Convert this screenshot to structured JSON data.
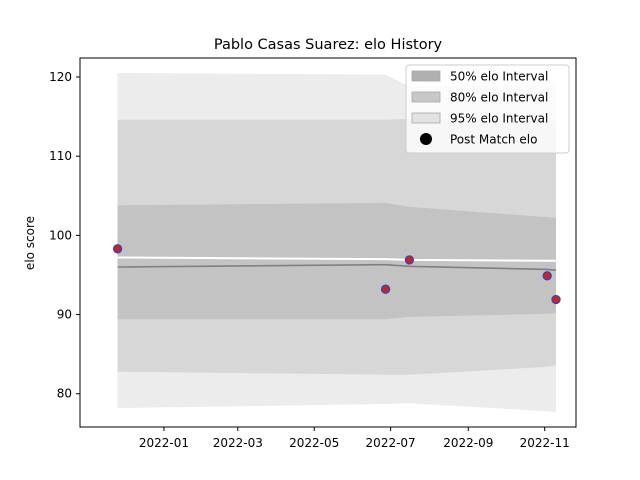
{
  "chart_data": {
    "type": "line",
    "title": "Pablo Casas Suarez: elo History",
    "xlabel": "",
    "ylabel": "elo score",
    "xlim": [
      "2021-10-26",
      "2022-11-26"
    ],
    "ylim": [
      75.8,
      122.4
    ],
    "x_ticks": [
      "2022-01",
      "2022-03",
      "2022-05",
      "2022-07",
      "2022-09",
      "2022-11"
    ],
    "y_ticks": [
      80,
      90,
      100,
      110,
      120
    ],
    "dates": [
      "2021-11-25",
      "2022-06-27",
      "2022-07-16",
      "2022-11-03",
      "2022-11-10"
    ],
    "median": [
      96.0,
      96.3,
      96.1,
      95.7,
      95.6
    ],
    "band_50": {
      "low": [
        89.4,
        89.4,
        89.7,
        90.1,
        90.2
      ],
      "high": [
        103.8,
        104.1,
        103.6,
        102.3,
        102.2
      ]
    },
    "band_80": {
      "low": [
        82.8,
        82.4,
        82.4,
        83.4,
        83.6
      ],
      "high": [
        114.6,
        114.6,
        114.7,
        114.5,
        114.5
      ]
    },
    "band_95": {
      "low": [
        78.2,
        78.7,
        78.8,
        77.8,
        77.7
      ],
      "high": [
        120.5,
        120.3,
        118.8,
        118.9,
        119.0
      ]
    },
    "mean_line": [
      97.2,
      97.0,
      96.9,
      96.8,
      96.8
    ],
    "post_match_elo": [
      {
        "date": "2021-11-25",
        "elo": 98.3
      },
      {
        "date": "2022-06-27",
        "elo": 93.2
      },
      {
        "date": "2022-07-16",
        "elo": 96.9
      },
      {
        "date": "2022-11-03",
        "elo": 94.9
      },
      {
        "date": "2022-11-10",
        "elo": 91.9
      }
    ],
    "legend": {
      "position": "top-right",
      "entries": [
        "50% elo Interval",
        "80% elo Interval",
        "95% elo Interval",
        "Post Match elo"
      ]
    },
    "colors": {
      "band_50": "#b0b0b0",
      "band_80": "#c8c8c8",
      "band_95": "#e2e2e2",
      "median_line": "#808080",
      "mean_line": "#ffffff",
      "marker_fill": "#cc2222",
      "marker_edge": "#3344bb",
      "legend_marker": "#000000"
    },
    "grid": false
  }
}
